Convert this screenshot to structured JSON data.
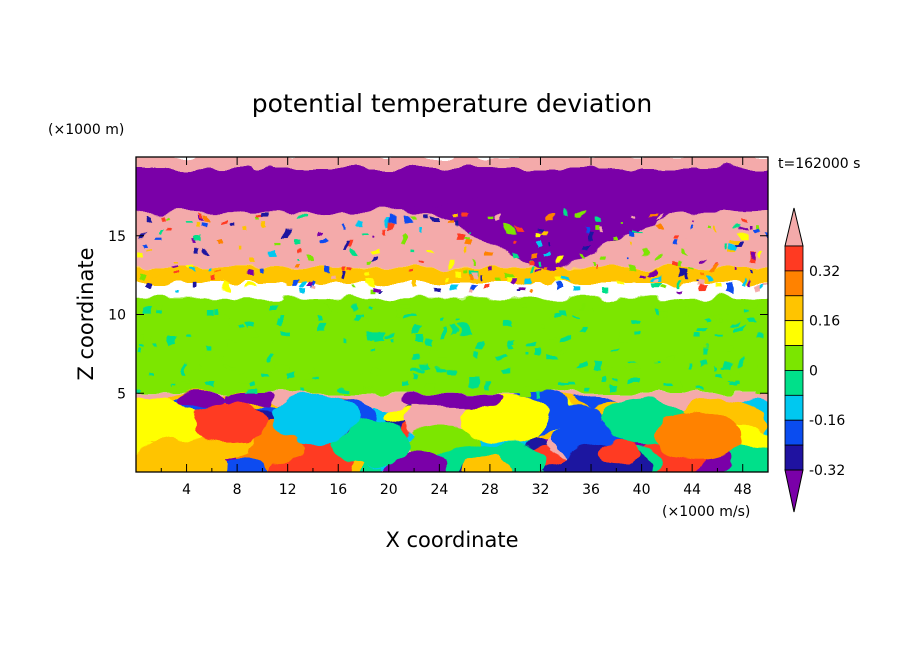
{
  "chart_data": {
    "type": "heatmap",
    "title": "potential temperature deviation",
    "xlabel": "X coordinate",
    "ylabel": "Z coordinate",
    "x_unit": "(×1000 m/s)",
    "y_unit": "(×1000 m)",
    "time_label": "t=162000 s",
    "xlim": [
      0,
      50
    ],
    "ylim": [
      0,
      20
    ],
    "x_ticks": [
      "4",
      "8",
      "12",
      "16",
      "20",
      "24",
      "28",
      "32",
      "36",
      "40",
      "44",
      "48"
    ],
    "y_ticks": [
      "5",
      "10",
      "15"
    ],
    "colorbar": {
      "labels": [
        "0.32",
        "0.16",
        "0",
        "-0.16",
        "-0.32"
      ],
      "levels": [
        -0.4,
        -0.32,
        -0.24,
        -0.16,
        -0.08,
        0,
        0.08,
        0.16,
        0.24,
        0.32,
        0.4
      ],
      "colors": [
        "#7a00a8",
        "#1f12a0",
        "#0a4cf0",
        "#00c8f0",
        "#00e08a",
        "#7be600",
        "#ffff00",
        "#ffc400",
        "#ff8200",
        "#ff3a22",
        "#f4aaaa"
      ],
      "extend": "both"
    },
    "layers": [
      {
        "z_from": 17.5,
        "z_to": 20,
        "description_value": 0.4
      },
      {
        "z_from": 16.3,
        "z_to": 19.3,
        "description_value": -0.4
      },
      {
        "z_from": 13,
        "z_to": 16.5,
        "description_value": 0.4
      },
      {
        "z_from": 12,
        "z_to": 13,
        "description_value": 0.2
      },
      {
        "z_from": 5,
        "z_to": 11,
        "description_value": 0.04
      },
      {
        "z_from": 4,
        "z_to": 5,
        "description_value": 0.4
      },
      {
        "z_from": 0,
        "z_to": 4,
        "description_value": -0.1
      }
    ]
  }
}
